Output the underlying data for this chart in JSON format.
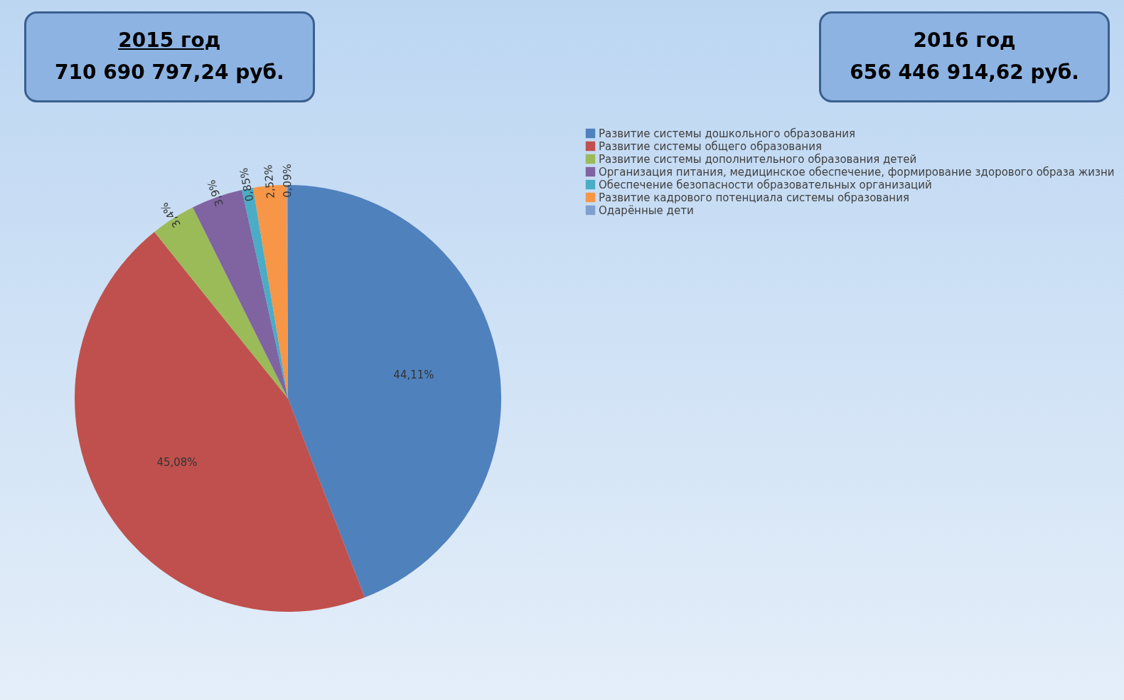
{
  "chart_data": {
    "type": "pie",
    "annotations": [
      "2015 год",
      "710 690 797,24 руб.",
      "2016 год",
      "656 446 914,62 руб."
    ],
    "categories": [
      "Развитие системы дошкольного образования",
      "Развитие системы общего образования",
      "Развитие системы дополнительного образования детей",
      "Организация питания, медицинское обеспечение, формирование здорового образа жизни",
      "Обеспечение безопасности образовательных организаций",
      "Развитие кадрового потенциала системы образования",
      "Одарённые дети"
    ],
    "values": [
      44.11,
      45.08,
      3.4,
      3.9,
      0.85,
      2.52,
      0.09
    ],
    "colors": [
      "#4f81bd",
      "#c0504d",
      "#9bbb59",
      "#8064a2",
      "#4bacc6",
      "#f79646",
      "#7f9fcf"
    ],
    "value_labels": [
      "44,11%",
      "45,08%",
      "3,4%",
      "3,9%",
      "0,85%",
      "2,52%",
      "0,09%"
    ],
    "legend": "right"
  }
}
